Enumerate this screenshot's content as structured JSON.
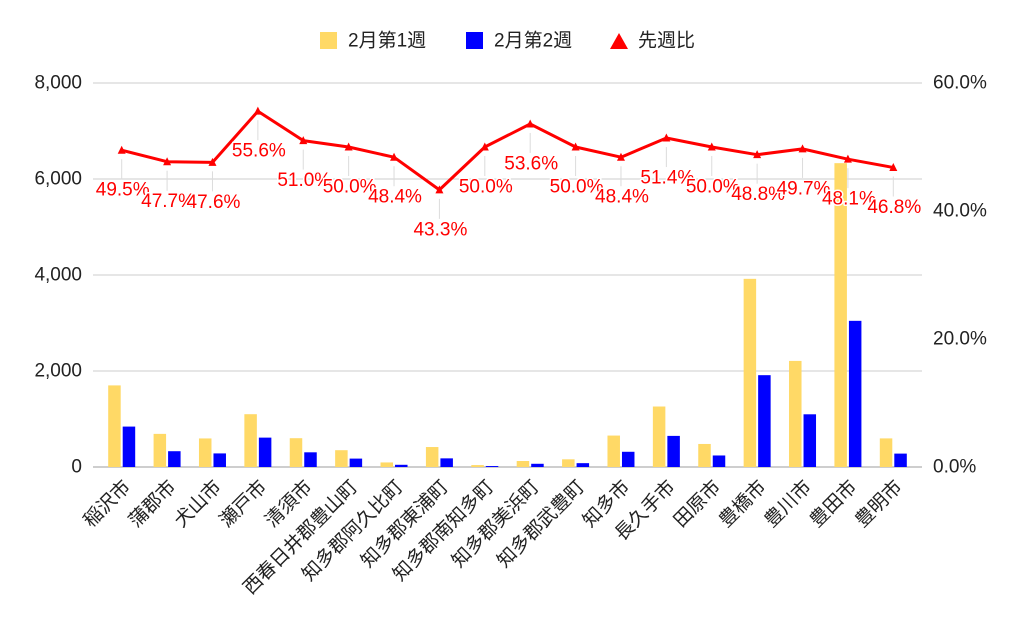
{
  "chart_data": {
    "type": "bar",
    "categories": [
      "稲沢市",
      "蒲郡市",
      "犬山市",
      "瀬戸市",
      "清須市",
      "西春日井郡豊山町",
      "知多郡阿久比町",
      "知多郡東浦町",
      "知多郡南知多町",
      "知多郡美浜町",
      "知多郡武豊町",
      "知多市",
      "長久手市",
      "田原市",
      "豊橋市",
      "豊川市",
      "豊田市",
      "豊明市"
    ],
    "series": [
      {
        "name": "2月第1週",
        "type": "bar",
        "axis": "left",
        "color": "#ffd966",
        "values": [
          1700,
          690,
          595,
          1100,
          600,
          350,
          95,
          416,
          40,
          125,
          160,
          655,
          1260,
          480,
          3920,
          2210,
          6330,
          596
        ]
      },
      {
        "name": "2月第2週",
        "type": "bar",
        "axis": "left",
        "color": "#0000ff",
        "values": [
          842,
          329,
          283,
          612,
          306,
          175,
          46,
          180,
          20,
          67,
          80,
          317,
          648,
          240,
          1913,
          1098,
          3045,
          279
        ]
      },
      {
        "name": "先週比",
        "type": "line",
        "axis": "right",
        "color": "#ff0000",
        "marker": "triangle",
        "values": [
          49.5,
          47.7,
          47.6,
          55.6,
          51.0,
          50.0,
          48.4,
          43.3,
          50.0,
          53.6,
          50.0,
          48.4,
          51.4,
          50.0,
          48.8,
          49.7,
          48.1,
          46.8
        ],
        "labels": [
          "49.5%",
          "47.7%",
          "47.6%",
          "55.6%",
          "51.0%",
          "50.0%",
          "48.4%",
          "43.3%",
          "50.0%",
          "53.6%",
          "50.0%",
          "48.4%",
          "51.4%",
          "50.0%",
          "48.8%",
          "49.7%",
          "48.1%",
          "46.8%"
        ]
      }
    ],
    "y_left": {
      "lim": [
        0,
        8000
      ],
      "ticks": [
        {
          "value": 0,
          "label": "0"
        },
        {
          "value": 2000,
          "label": "2,000"
        },
        {
          "value": 4000,
          "label": "4,000"
        },
        {
          "value": 6000,
          "label": "6,000"
        },
        {
          "value": 8000,
          "label": "8,000"
        }
      ]
    },
    "y_right": {
      "lim": [
        0,
        60
      ],
      "ticks": [
        {
          "value": 0,
          "label": "0.0%"
        },
        {
          "value": 20,
          "label": "20.0%"
        },
        {
          "value": 40,
          "label": "40.0%"
        },
        {
          "value": 60,
          "label": "60.0%"
        }
      ]
    },
    "grid": true,
    "legend": {
      "position": "top"
    }
  }
}
